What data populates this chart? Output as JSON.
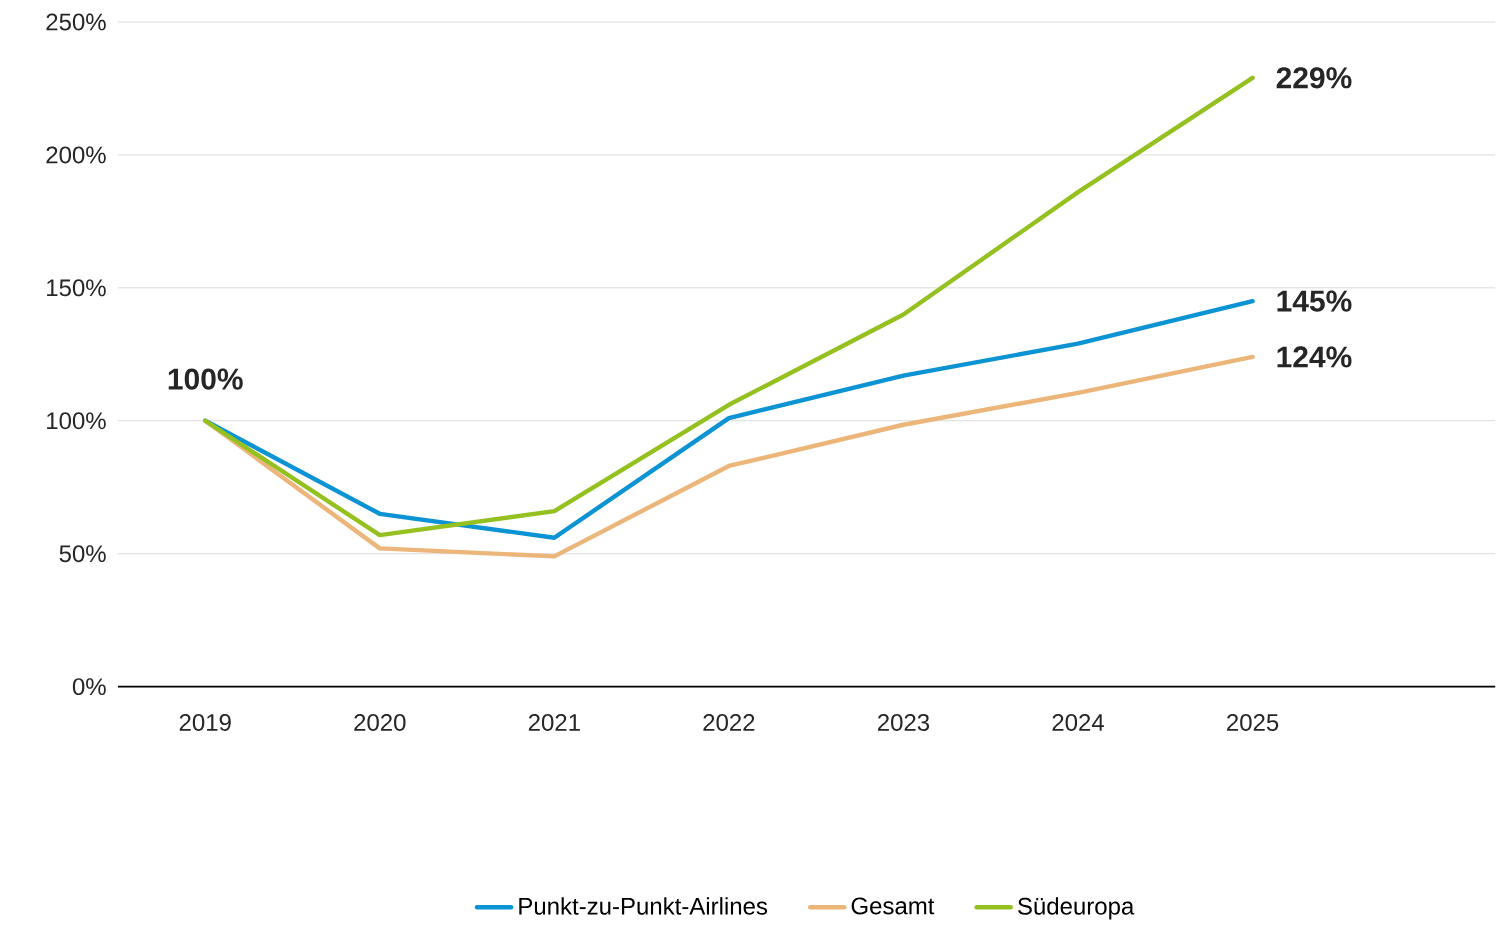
{
  "chart_data": {
    "type": "line",
    "categories": [
      "2019",
      "2020",
      "2021",
      "2022",
      "2023",
      "2024",
      "2025"
    ],
    "series": [
      {
        "name": "Punkt-zu-Punkt-Airlines",
        "color": "#0b93d3",
        "values": [
          100,
          65,
          56,
          101,
          117,
          129,
          145
        ],
        "value_labels": [
          "100%",
          null,
          null,
          null,
          null,
          null,
          "145%"
        ]
      },
      {
        "name": "Gesamt",
        "color": "#ecb67a",
        "values": [
          100,
          52,
          49,
          83,
          98.5,
          110.5,
          124
        ],
        "value_labels": [
          null,
          null,
          null,
          null,
          null,
          null,
          "124%"
        ]
      },
      {
        "name": "Südeuropa",
        "color": "#94c11f",
        "values": [
          100,
          57,
          66,
          106,
          140,
          186,
          229
        ],
        "value_labels": [
          null,
          null,
          null,
          null,
          null,
          null,
          "229%"
        ]
      }
    ],
    "ylim": [
      0,
      250
    ],
    "yticks": [
      {
        "value": 0,
        "label": "0%"
      },
      {
        "value": 50,
        "label": "50%"
      },
      {
        "value": 100,
        "label": "100%"
      },
      {
        "value": 150,
        "label": "150%"
      },
      {
        "value": 200,
        "label": "200%"
      },
      {
        "value": 250,
        "label": "250%"
      }
    ],
    "grid": "y",
    "legend": "bottom",
    "marker": "none",
    "line_style": "solid"
  }
}
